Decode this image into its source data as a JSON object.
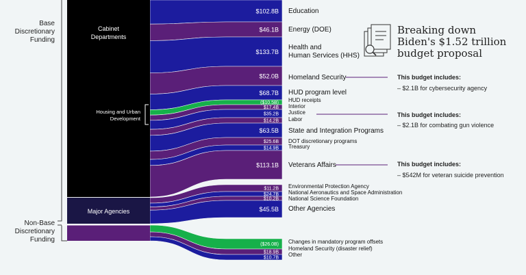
{
  "title_lines": [
    "Breaking down",
    "Biden's $1.52 trillion",
    "budget proposal"
  ],
  "groups": {
    "base": [
      "Base",
      "Discretionary",
      "Funding"
    ],
    "nonbase": [
      "Non-Base",
      "Discretionary",
      "Funding"
    ],
    "cabinet": [
      "Cabinet",
      "Departments"
    ],
    "hud": [
      "Housing and Urban",
      "Development"
    ],
    "major": "Major Agencies"
  },
  "colors": {
    "blue": "#1c1c9e",
    "purple": "#5a1f78",
    "green": "#16b04a",
    "black": "#000000",
    "navy": "#1a1645"
  },
  "chart_data": {
    "type": "sankey",
    "flows": [
      {
        "value": "$102.8B",
        "label": "Education",
        "amount": 102.8,
        "color": "blue"
      },
      {
        "value": "$46.1B",
        "label": "Energy (DOE)",
        "amount": 46.1,
        "color": "purple"
      },
      {
        "value": "$133.7B",
        "label": "Health and Human Services (HHS)",
        "amount": 133.7,
        "color": "blue"
      },
      {
        "value": "$52.0B",
        "label": "Homeland Security",
        "amount": 52.0,
        "color": "purple"
      },
      {
        "value": "$68.7B",
        "label": "HUD program level",
        "amount": 68.7,
        "color": "blue"
      },
      {
        "value": "($10.5B)",
        "label": "HUD receipts",
        "amount": -10.5,
        "color": "green"
      },
      {
        "value": "$17.4B",
        "label": "Interior",
        "amount": 17.4,
        "color": "purple"
      },
      {
        "value": "$35.2B",
        "label": "Justice",
        "amount": 35.2,
        "color": "blue"
      },
      {
        "value": "$14.2B",
        "label": "Labor",
        "amount": 14.2,
        "color": "purple"
      },
      {
        "value": "$63.5B",
        "label": "State and Integration Programs",
        "amount": 63.5,
        "color": "blue"
      },
      {
        "value": "$25.6B",
        "label": "DOT discretionary programs",
        "amount": 25.6,
        "color": "purple"
      },
      {
        "value": "$14.9B",
        "label": "Treasury",
        "amount": 14.9,
        "color": "blue"
      },
      {
        "value": "$113.1B",
        "label": "Veterans Affairs",
        "amount": 113.1,
        "color": "purple"
      },
      {
        "value": "$11.2B",
        "label": "Environmental Protection Agency",
        "amount": 11.2,
        "color": "purple"
      },
      {
        "value": "$24.7B",
        "label": "National Aeronautics and Space Administration",
        "amount": 24.7,
        "color": "blue"
      },
      {
        "value": "$10.2B",
        "label": "National Science Foundation",
        "amount": 10.2,
        "color": "purple"
      },
      {
        "value": "$45.5B",
        "label": "Other Agencies",
        "amount": 45.5,
        "color": "blue"
      },
      {
        "value": "($26.0B)",
        "label": "Changes in mandatory program offsets",
        "amount": -26.0,
        "color": "green"
      },
      {
        "value": "$18.9B",
        "label": "Homeland Security (disaster relief)",
        "amount": 18.9,
        "color": "purple"
      },
      {
        "value": "$10.7B",
        "label": "Other",
        "amount": 10.7,
        "color": "blue"
      }
    ],
    "notes": [
      {
        "flow": "Homeland Security",
        "heading": "This budget includes:",
        "text": "– $2.1B for cybersecurity agency"
      },
      {
        "flow": "Justice",
        "heading": "This budget includes:",
        "text": "– $2.1B for combating gun violence"
      },
      {
        "flow": "Veterans Affairs",
        "heading": "This budget includes:",
        "text": "– $542M for veteran suicide prevention"
      }
    ]
  }
}
